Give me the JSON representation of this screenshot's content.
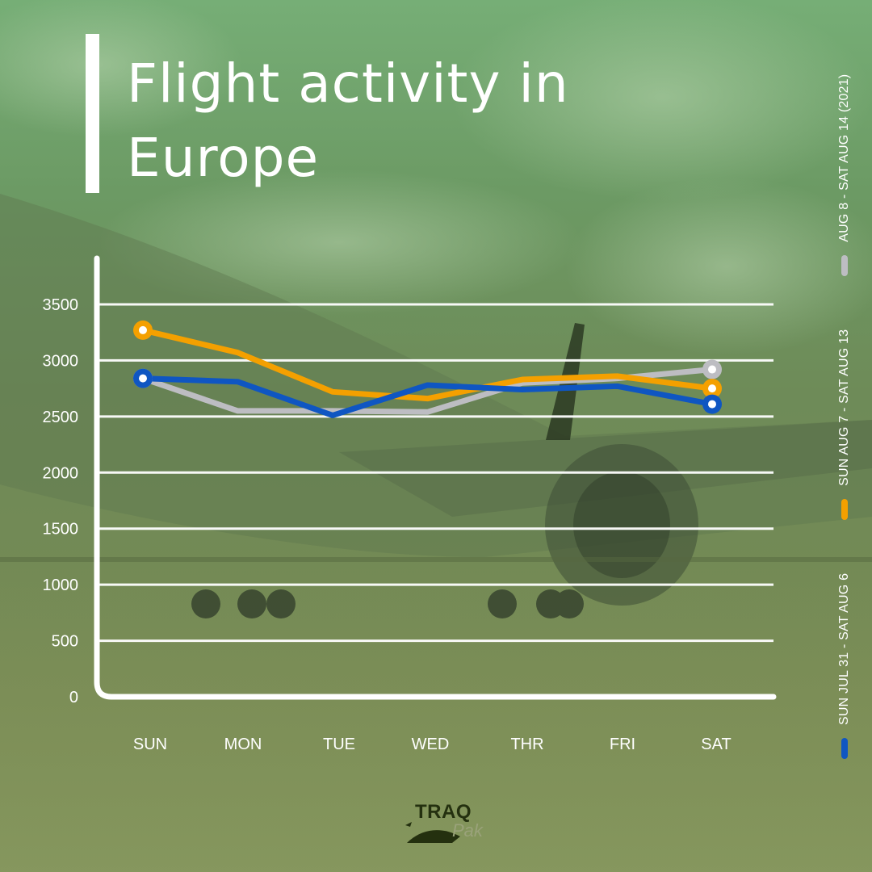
{
  "title": "Flight activity in\nEurope",
  "colors": {
    "background": "#6e8b58",
    "axis": "#ffffff",
    "series_blue": "#0f56c2",
    "series_orange": "#f4a000",
    "series_grey": "#bdbdc2"
  },
  "chart_data": {
    "type": "line",
    "categories": [
      "SUN",
      "MON",
      "TUE",
      "WED",
      "THR",
      "FRI",
      "SAT"
    ],
    "ylim": [
      0,
      3500
    ],
    "y_ticks": [
      "0",
      "500",
      "1000",
      "1500",
      "2000",
      "2500",
      "3000",
      "3500"
    ],
    "grid": true,
    "legend_position": "right, vertical",
    "series": [
      {
        "name": "SUN JUL 31 - SAT AUG 6",
        "color": "#0f56c2",
        "values": [
          2840,
          2810,
          2510,
          2780,
          2740,
          2770,
          2610
        ]
      },
      {
        "name": "SUN AUG 7 - SAT AUG 13",
        "color": "#f4a000",
        "values": [
          3270,
          3070,
          2720,
          2660,
          2830,
          2860,
          2750
        ]
      },
      {
        "name": "AUG 8 - SAT AUG 14 (2021)",
        "color": "#bdbdc2",
        "values": [
          2840,
          2550,
          2550,
          2540,
          2800,
          2840,
          2920
        ]
      }
    ]
  },
  "logo": {
    "line1": "TRAQ",
    "line2": "Pak"
  }
}
